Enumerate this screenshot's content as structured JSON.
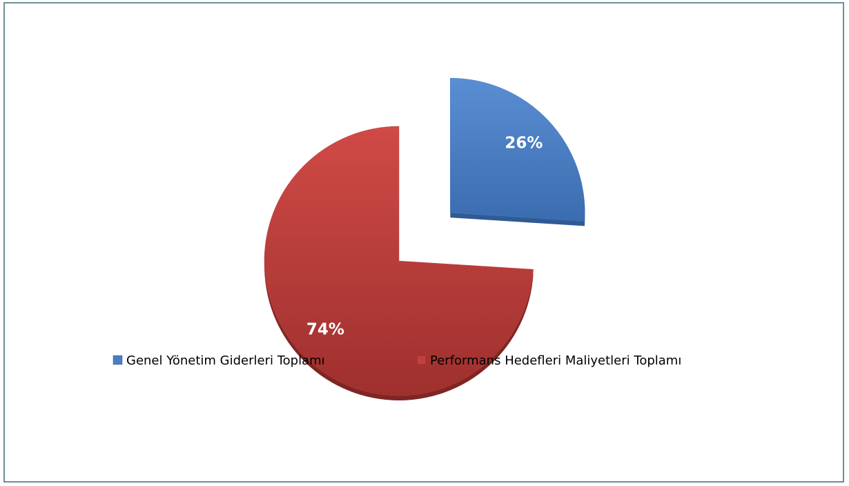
{
  "chart_data": {
    "type": "pie",
    "categories": [
      "Genel Yönetim Giderleri Toplamı",
      "Performans Hedefleri Maliyetleri Toplamı"
    ],
    "values": [
      26,
      74
    ],
    "value_labels": [
      "26%",
      "74%"
    ],
    "colors": [
      "#4a7ec4",
      "#c0403d"
    ],
    "explode": [
      true,
      false
    ],
    "legend": "bottom"
  }
}
